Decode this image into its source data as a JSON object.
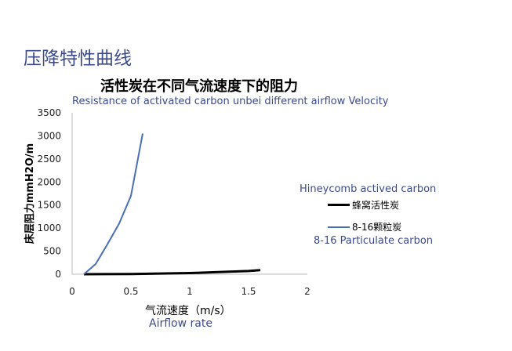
{
  "page_title": "压降特性曲线",
  "chart_data": {
    "type": "line",
    "title": "活性炭在不同气流速度下的阻力",
    "subtitle": "Resistance of activated carbon unbei different airflow Velocity",
    "xlabel": "气流速度（m/s）",
    "xlabel_en": "Airflow rate",
    "ylabel": "床层阻力mmH2O/m",
    "xlim": [
      0,
      2
    ],
    "ylim": [
      0,
      3500
    ],
    "xticks": [
      "0",
      "0.5",
      "1",
      "1.5",
      "2"
    ],
    "yticks": [
      "0",
      "500",
      "1000",
      "1500",
      "2000",
      "2500",
      "3000",
      "3500"
    ],
    "grid": false,
    "legend_position": "right",
    "series": [
      {
        "name": "蜂窝活性炭",
        "name_en": "Hineycomb actived carbon",
        "color": "#000000",
        "x": [
          0.1,
          0.5,
          1.0,
          1.5,
          1.6
        ],
        "y": [
          0,
          5,
          25,
          70,
          90
        ]
      },
      {
        "name": "8-16颗粒炭",
        "name_en": "8-16 Particulate carbon",
        "color": "#4a6fb5",
        "x": [
          0.1,
          0.2,
          0.3,
          0.4,
          0.5,
          0.6
        ],
        "y": [
          0,
          220,
          650,
          1100,
          1700,
          3050
        ]
      }
    ]
  }
}
